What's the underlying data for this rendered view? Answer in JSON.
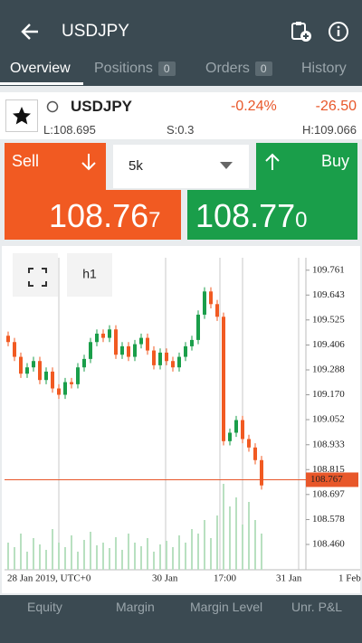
{
  "header": {
    "title": "USDJPY"
  },
  "tabs": [
    {
      "label": "Overview"
    },
    {
      "label": "Positions",
      "badge": "0"
    },
    {
      "label": "Orders",
      "badge": "0"
    },
    {
      "label": "History"
    }
  ],
  "instrument": {
    "symbol": "USDJPY",
    "change_pct": "-0.24%",
    "change": "-26.50",
    "low": "L:108.695",
    "spread": "S:0.3",
    "high": "H:109.066"
  },
  "trade": {
    "sell_label": "Sell",
    "buy_label": "Buy",
    "amount": "5k",
    "sell_price": "108.76",
    "sell_pip": "7",
    "buy_price": "108.77",
    "buy_pip": "0"
  },
  "chart": {
    "type": "candlestick",
    "timeframe": "h1",
    "ylim": [
      108.34,
      109.82
    ],
    "yticks": [
      109.761,
      109.643,
      109.525,
      109.406,
      109.288,
      {
        "value": 109.17,
        "label": "109.170"
      },
      109.052,
      108.933,
      108.815,
      108.697,
      108.578,
      {
        "value": 108.46,
        "label": "108.460"
      }
    ],
    "current_price": 108.767,
    "x_labels": [
      "28 Jan 2019, UTC+0",
      "30 Jan",
      "17:00",
      "31 Jan",
      "1 Feb"
    ],
    "up_color": "#1a9e4a",
    "down_color": "#f15a22",
    "price_line_color": "#e8572a",
    "candles": [
      [
        109.45,
        109.47,
        109.4,
        109.42
      ],
      [
        109.42,
        109.44,
        109.33,
        109.35
      ],
      [
        109.35,
        109.37,
        109.25,
        109.27
      ],
      [
        109.27,
        109.32,
        109.25,
        109.3
      ],
      [
        109.3,
        109.35,
        109.28,
        109.33
      ],
      [
        109.33,
        109.35,
        109.22,
        109.24
      ],
      [
        109.24,
        109.3,
        109.22,
        109.28
      ],
      [
        109.28,
        109.3,
        109.18,
        109.2
      ],
      [
        109.2,
        109.22,
        109.15,
        109.17
      ],
      [
        109.17,
        109.25,
        109.15,
        109.23
      ],
      [
        109.23,
        109.25,
        109.2,
        109.22
      ],
      [
        109.22,
        109.32,
        109.2,
        109.3
      ],
      [
        109.3,
        109.36,
        109.28,
        109.34
      ],
      [
        109.34,
        109.44,
        109.32,
        109.42
      ],
      [
        109.42,
        109.48,
        109.4,
        109.46
      ],
      [
        109.46,
        109.48,
        109.42,
        109.44
      ],
      [
        109.44,
        109.5,
        109.42,
        109.48
      ],
      [
        109.48,
        109.5,
        109.34,
        109.36
      ],
      [
        109.36,
        109.42,
        109.34,
        109.4
      ],
      [
        109.4,
        109.42,
        109.33,
        109.35
      ],
      [
        109.35,
        109.43,
        109.33,
        109.41
      ],
      [
        109.41,
        109.46,
        109.39,
        109.44
      ],
      [
        109.44,
        109.46,
        109.36,
        109.38
      ],
      [
        109.38,
        109.4,
        109.29,
        109.31
      ],
      [
        109.31,
        109.39,
        109.29,
        109.37
      ],
      [
        109.37,
        109.39,
        109.31,
        109.33
      ],
      [
        109.33,
        109.35,
        109.28,
        109.3
      ],
      [
        109.3,
        109.37,
        109.28,
        109.35
      ],
      [
        109.35,
        109.42,
        109.33,
        109.4
      ],
      [
        109.4,
        109.45,
        109.38,
        109.43
      ],
      [
        109.43,
        109.57,
        109.41,
        109.55
      ],
      [
        109.55,
        109.68,
        109.53,
        109.66
      ],
      [
        109.66,
        109.68,
        109.58,
        109.6
      ],
      [
        109.6,
        109.62,
        109.52,
        109.54
      ],
      [
        109.54,
        109.56,
        108.93,
        108.95
      ],
      [
        108.95,
        109.01,
        108.93,
        108.99
      ],
      [
        108.99,
        109.07,
        108.97,
        109.05
      ],
      [
        109.05,
        109.07,
        108.94,
        108.96
      ],
      [
        108.96,
        108.98,
        108.9,
        108.92
      ],
      [
        108.92,
        108.94,
        108.84,
        108.86
      ],
      [
        108.86,
        108.88,
        108.72,
        108.74
      ]
    ],
    "volumes": [
      30,
      25,
      40,
      20,
      35,
      28,
      22,
      45,
      30,
      25,
      38,
      20,
      33,
      42,
      27,
      30,
      24,
      36,
      22,
      40,
      30,
      26,
      35,
      20,
      28,
      32,
      25,
      38,
      30,
      45,
      40,
      55,
      35,
      60,
      95,
      70,
      80,
      50,
      75,
      55,
      40
    ]
  },
  "footer": [
    "Equity",
    "Margin",
    "Margin Level",
    "Unr. P&L"
  ]
}
